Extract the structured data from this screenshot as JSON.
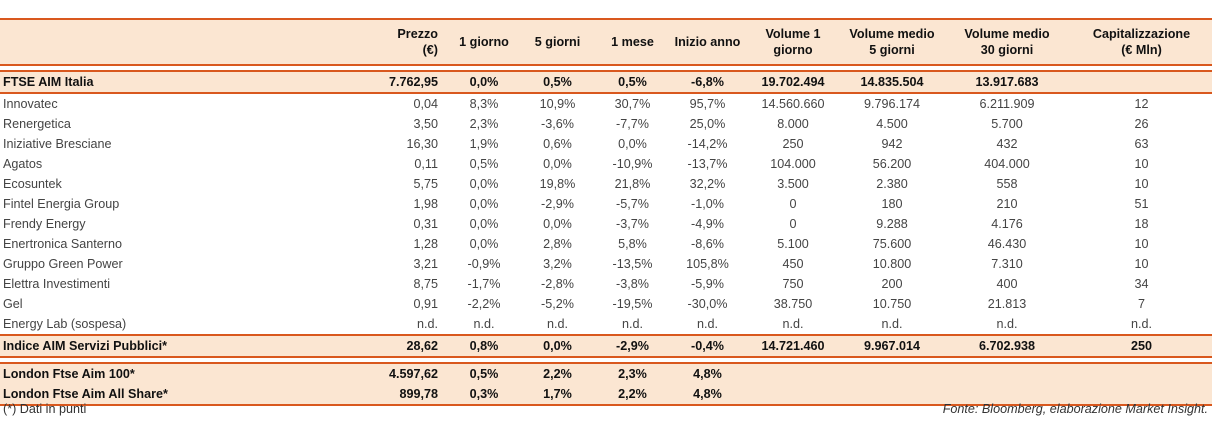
{
  "headers": {
    "prezzo_l1": "Prezzo",
    "prezzo_l2": "(€)",
    "g1": "1 giorno",
    "g5": "5 giorni",
    "m1": "1 mese",
    "ytd": "Inizio anno",
    "vol1_l1": "Volume 1",
    "vol1_l2": "giorno",
    "vol5_l1": "Volume medio",
    "vol5_l2": "5 giorni",
    "vol30_l1": "Volume medio",
    "vol30_l2": "30 giorni",
    "cap_l1": "Capitalizzazione",
    "cap_l2": "(€ Mln)"
  },
  "index_row": {
    "name": "FTSE AIM Italia",
    "price": "7.762,95",
    "d1": "0,0%",
    "d5": "0,5%",
    "m1": "0,5%",
    "ytd": "-6,8%",
    "vol1": "19.702.494",
    "vol5": "14.835.504",
    "vol30": "13.917.683",
    "cap": ""
  },
  "rows": [
    {
      "name": "Innovatec",
      "price": "0,04",
      "d1": "8,3%",
      "d5": "10,9%",
      "m1": "30,7%",
      "ytd": "95,7%",
      "vol1": "14.560.660",
      "vol5": "9.796.174",
      "vol30": "6.211.909",
      "cap": "12"
    },
    {
      "name": "Renergetica",
      "price": "3,50",
      "d1": "2,3%",
      "d5": "-3,6%",
      "m1": "-7,7%",
      "ytd": "25,0%",
      "vol1": "8.000",
      "vol5": "4.500",
      "vol30": "5.700",
      "cap": "26"
    },
    {
      "name": "Iniziative Bresciane",
      "price": "16,30",
      "d1": "1,9%",
      "d5": "0,6%",
      "m1": "0,0%",
      "ytd": "-14,2%",
      "vol1": "250",
      "vol5": "942",
      "vol30": "432",
      "cap": "63"
    },
    {
      "name": "Agatos",
      "price": "0,11",
      "d1": "0,5%",
      "d5": "0,0%",
      "m1": "-10,9%",
      "ytd": "-13,7%",
      "vol1": "104.000",
      "vol5": "56.200",
      "vol30": "404.000",
      "cap": "10"
    },
    {
      "name": "Ecosuntek",
      "price": "5,75",
      "d1": "0,0%",
      "d5": "19,8%",
      "m1": "21,8%",
      "ytd": "32,2%",
      "vol1": "3.500",
      "vol5": "2.380",
      "vol30": "558",
      "cap": "10"
    },
    {
      "name": "Fintel Energia Group",
      "price": "1,98",
      "d1": "0,0%",
      "d5": "-2,9%",
      "m1": "-5,7%",
      "ytd": "-1,0%",
      "vol1": "0",
      "vol5": "180",
      "vol30": "210",
      "cap": "51"
    },
    {
      "name": "Frendy Energy",
      "price": "0,31",
      "d1": "0,0%",
      "d5": "0,0%",
      "m1": "-3,7%",
      "ytd": "-4,9%",
      "vol1": "0",
      "vol5": "9.288",
      "vol30": "4.176",
      "cap": "18"
    },
    {
      "name": "Enertronica Santerno",
      "price": "1,28",
      "d1": "0,0%",
      "d5": "2,8%",
      "m1": "5,8%",
      "ytd": "-8,6%",
      "vol1": "5.100",
      "vol5": "75.600",
      "vol30": "46.430",
      "cap": "10"
    },
    {
      "name": "Gruppo Green Power",
      "price": "3,21",
      "d1": "-0,9%",
      "d5": "3,2%",
      "m1": "-13,5%",
      "ytd": "105,8%",
      "vol1": "450",
      "vol5": "10.800",
      "vol30": "7.310",
      "cap": "10"
    },
    {
      "name": "Elettra Investimenti",
      "price": "8,75",
      "d1": "-1,7%",
      "d5": "-2,8%",
      "m1": "-3,8%",
      "ytd": "-5,9%",
      "vol1": "750",
      "vol5": "200",
      "vol30": "400",
      "cap": "34"
    },
    {
      "name": "Gel",
      "price": "0,91",
      "d1": "-2,2%",
      "d5": "-5,2%",
      "m1": "-19,5%",
      "ytd": "-30,0%",
      "vol1": "38.750",
      "vol5": "10.750",
      "vol30": "21.813",
      "cap": "7"
    },
    {
      "name": "Energy Lab (sospesa)",
      "price": "n.d.",
      "d1": "n.d.",
      "d5": "n.d.",
      "m1": "n.d.",
      "ytd": "n.d.",
      "vol1": "n.d.",
      "vol5": "n.d.",
      "vol30": "n.d.",
      "cap": "n.d."
    }
  ],
  "sector_row": {
    "name": "Indice AIM Servizi Pubblici*",
    "price": "28,62",
    "d1": "0,8%",
    "d5": "0,0%",
    "m1": "-2,9%",
    "ytd": "-0,4%",
    "vol1": "14.721.460",
    "vol5": "9.967.014",
    "vol30": "6.702.938",
    "cap": "250"
  },
  "london_rows": [
    {
      "name": "London Ftse Aim 100*",
      "price": "4.597,62",
      "d1": "0,5%",
      "d5": "2,2%",
      "m1": "2,3%",
      "ytd": "4,8%"
    },
    {
      "name": "London Ftse Aim All Share*",
      "price": "899,78",
      "d1": "0,3%",
      "d5": "1,7%",
      "m1": "2,2%",
      "ytd": "4,8%"
    }
  ],
  "footer": {
    "note": "(*) Dati in punti",
    "source": "Fonte: Bloomberg, elaborazione Market Insight."
  }
}
